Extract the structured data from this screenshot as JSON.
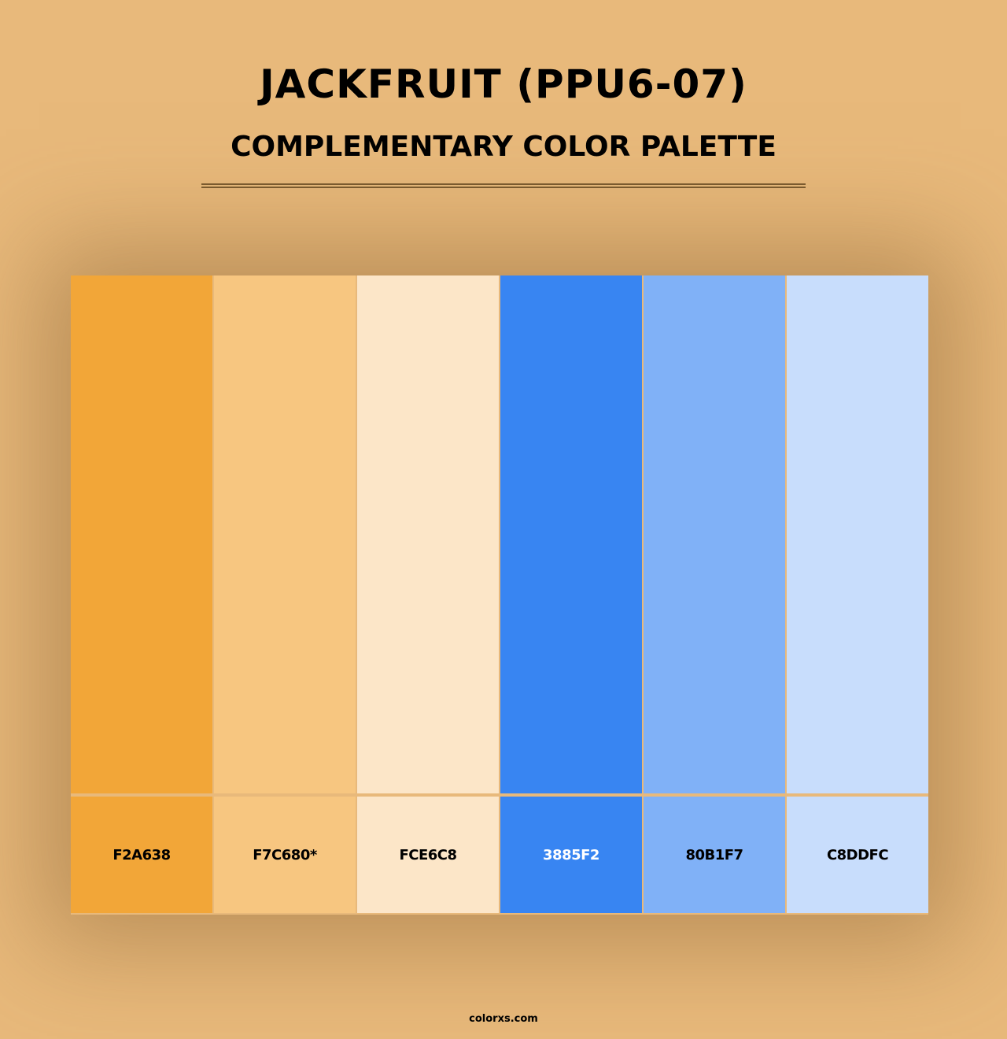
{
  "title": "JACKFRUIT (PPU6-07)",
  "subtitle": "COMPLEMENTARY COLOR PALETTE",
  "swatches": [
    {
      "color": "#F2A638",
      "label": "F2A638",
      "text_color": "#000000"
    },
    {
      "color": "#F7C680",
      "label": "F7C680*",
      "text_color": "#000000"
    },
    {
      "color": "#FCE6C8",
      "label": "FCE6C8",
      "text_color": "#000000"
    },
    {
      "color": "#3885F2",
      "label": "3885F2",
      "text_color": "#FFFFFF"
    },
    {
      "color": "#80B1F7",
      "label": "80B1F7",
      "text_color": "#000000"
    },
    {
      "color": "#C8DDFC",
      "label": "C8DDFC",
      "text_color": "#000000"
    }
  ],
  "footer": "colorxs.com"
}
